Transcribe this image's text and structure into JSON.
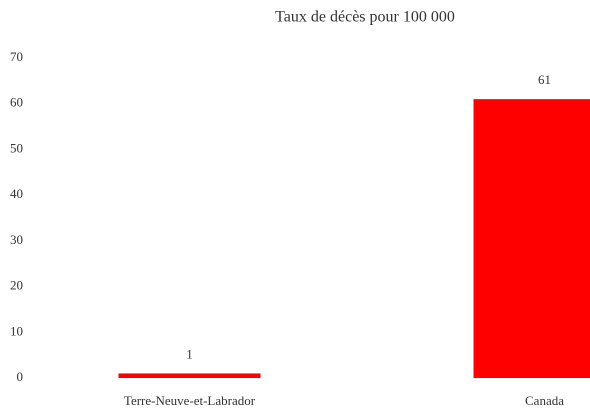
{
  "chart_data": {
    "type": "bar",
    "title": "Taux de décès pour 100 000",
    "categories": [
      "Terre-Neuve-et-Labrador",
      "Canada"
    ],
    "values": [
      1,
      61
    ],
    "color": "#ff0000",
    "ylim": [
      0,
      70
    ],
    "yticks": [
      0,
      10,
      20,
      30,
      40,
      50,
      60,
      70
    ],
    "grid": false
  }
}
